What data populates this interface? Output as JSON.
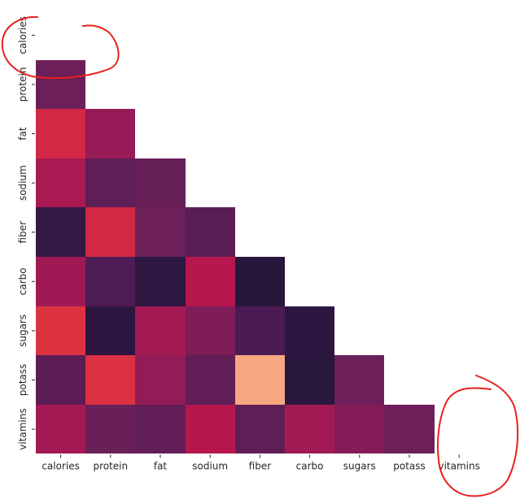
{
  "chart_data": {
    "type": "heatmap",
    "title": "",
    "xlabel": "",
    "ylabel": "",
    "variables": [
      "calories",
      "protein",
      "fat",
      "sodium",
      "fiber",
      "carbo",
      "sugars",
      "potass",
      "vitamins"
    ],
    "mask": "upper-triangle-including-diagonal",
    "value_range": [
      -0.6,
      1.0
    ],
    "colormap": "rocket",
    "colorbar": false,
    "grid": false,
    "matrix": [
      [
        null,
        null,
        null,
        null,
        null,
        null,
        null,
        null,
        null
      ],
      [
        0.02,
        null,
        null,
        null,
        null,
        null,
        null,
        null,
        null
      ],
      [
        0.5,
        0.21,
        null,
        null,
        null,
        null,
        null,
        null,
        null
      ],
      [
        0.3,
        -0.05,
        0.0,
        null,
        null,
        null,
        null,
        null,
        null
      ],
      [
        -0.29,
        0.5,
        0.02,
        -0.07,
        null,
        null,
        null,
        null,
        null
      ],
      [
        0.25,
        -0.13,
        -0.32,
        0.36,
        -0.36,
        null,
        null,
        null,
        null
      ],
      [
        0.56,
        -0.33,
        0.27,
        0.1,
        -0.14,
        -0.33,
        null,
        null,
        null
      ],
      [
        -0.06,
        0.55,
        0.19,
        -0.03,
        0.9,
        -0.35,
        0.02,
        null,
        null
      ],
      [
        0.27,
        0.01,
        -0.03,
        0.36,
        -0.04,
        0.26,
        0.13,
        0.02,
        null
      ]
    ]
  },
  "annotations": [
    {
      "name": "calories-circle",
      "color": "#e8201c"
    },
    {
      "name": "vitamins-circle",
      "color": "#e8201c"
    }
  ]
}
